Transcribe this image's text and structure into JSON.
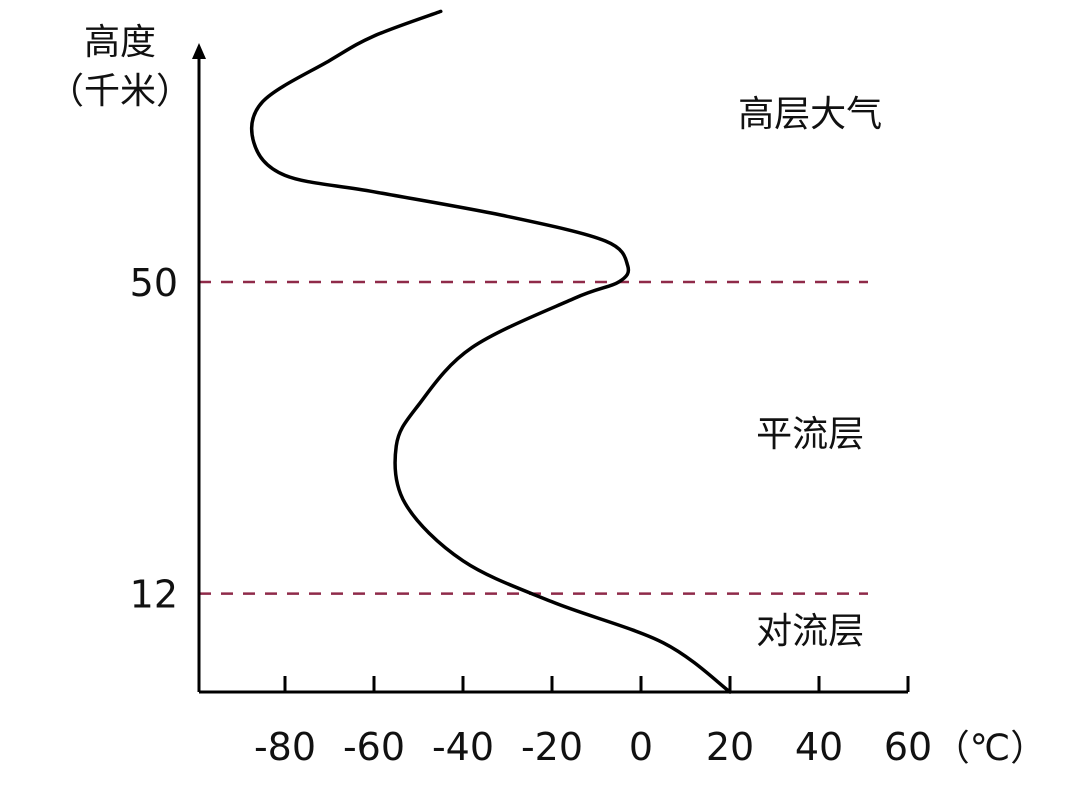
{
  "chart_data": {
    "type": "line",
    "ylabel": {
      "line1": "高度",
      "line2": "（千米）"
    },
    "unit_label": "（℃）",
    "x_ticks": [
      -80,
      -60,
      -40,
      -20,
      0,
      20,
      40,
      60
    ],
    "y_ticks": [
      12,
      50
    ],
    "xlim": [
      -100,
      60
    ],
    "ylim": [
      0,
      85
    ],
    "boundaries": [
      12,
      50
    ],
    "boundary_color": "#8f2a49",
    "line_color": "#000000",
    "layer_labels": [
      {
        "label": "对流层",
        "x": 38,
        "y": 6
      },
      {
        "label": "平流层",
        "x": 38,
        "y": 30
      },
      {
        "label": "高层大气",
        "x": 38,
        "y": 69
      }
    ],
    "series": [
      {
        "values": [
          {
            "x": 20,
            "y": 0
          },
          {
            "x": 5,
            "y": 6
          },
          {
            "x": -20,
            "y": 11
          },
          {
            "x": -40,
            "y": 16
          },
          {
            "x": -53,
            "y": 23
          },
          {
            "x": -55,
            "y": 30
          },
          {
            "x": -50,
            "y": 35
          },
          {
            "x": -38,
            "y": 42
          },
          {
            "x": -15,
            "y": 48
          },
          {
            "x": -5,
            "y": 50
          },
          {
            "x": -3,
            "y": 52
          },
          {
            "x": -8,
            "y": 55
          },
          {
            "x": -30,
            "y": 58
          },
          {
            "x": -60,
            "y": 61
          },
          {
            "x": -80,
            "y": 63
          },
          {
            "x": -87,
            "y": 67
          },
          {
            "x": -85,
            "y": 72
          },
          {
            "x": -70,
            "y": 77
          },
          {
            "x": -60,
            "y": 80
          },
          {
            "x": -45,
            "y": 83
          }
        ]
      }
    ]
  }
}
